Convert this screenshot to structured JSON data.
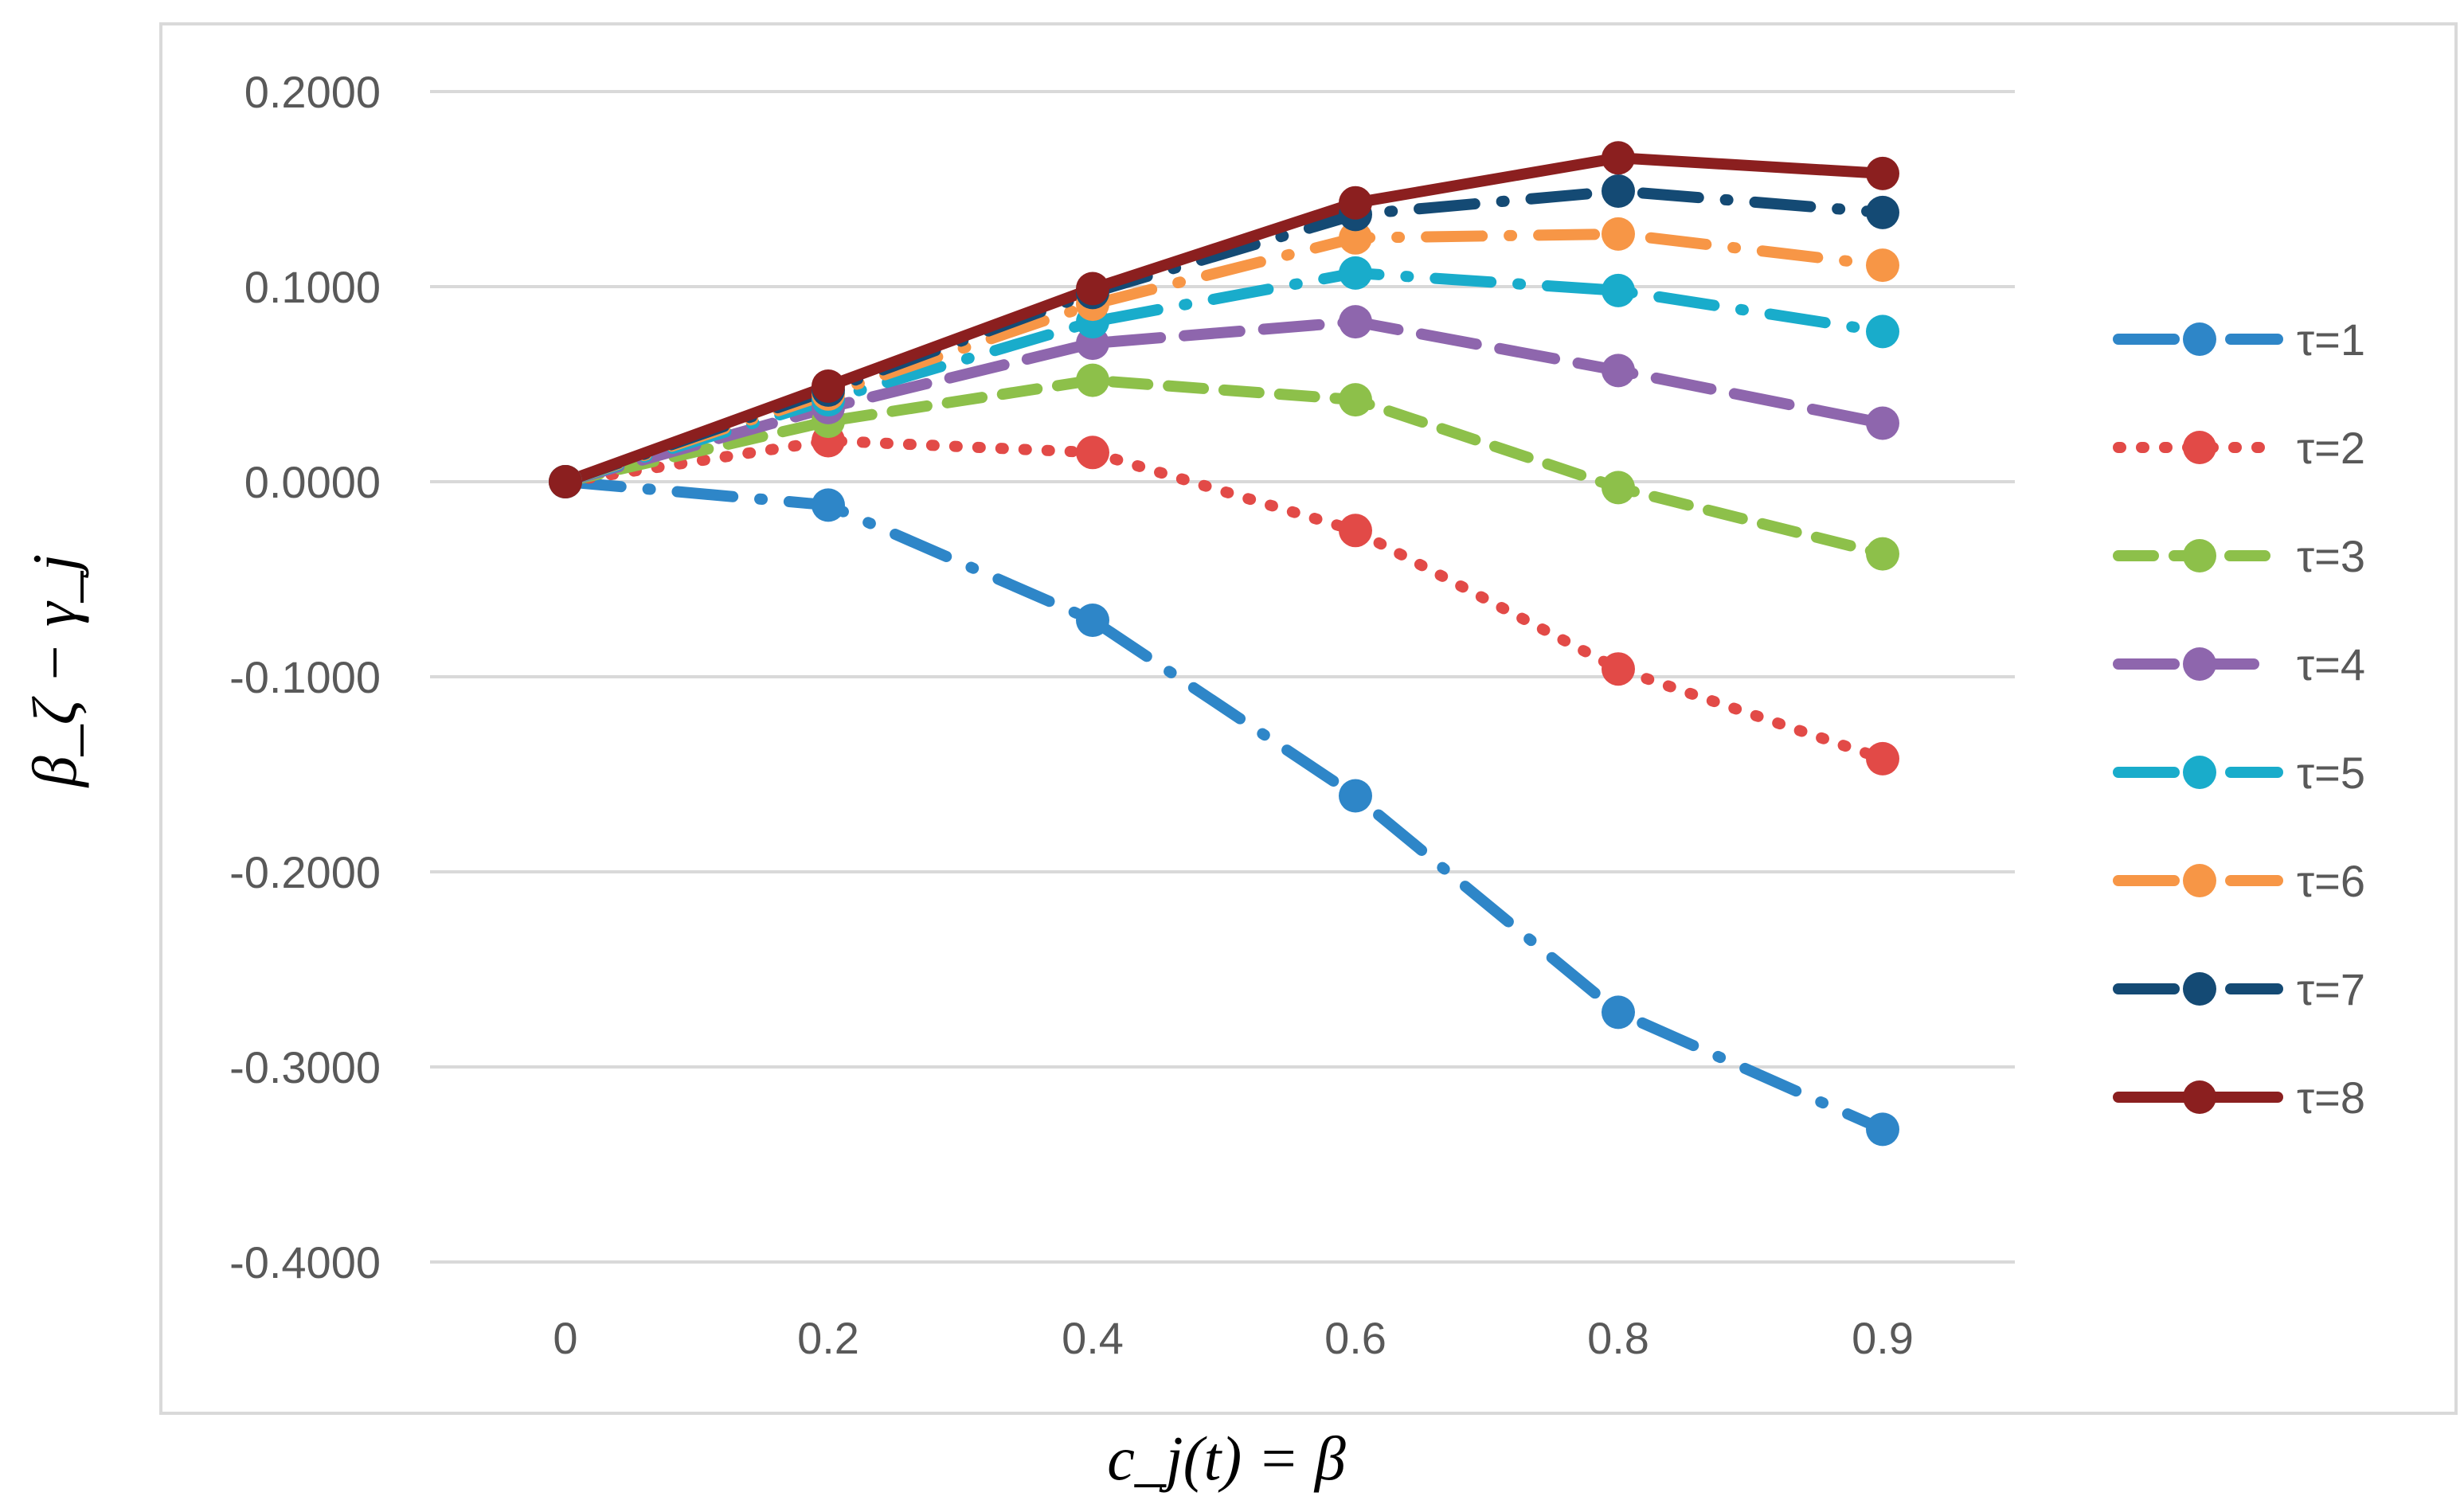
{
  "chart_data": {
    "type": "line",
    "title": "",
    "xlabel": "c_j(t) = β",
    "ylabel": "β_ζ − γ_j",
    "categories": [
      "0",
      "0.2",
      "0.4",
      "0.6",
      "0.8",
      "0.9"
    ],
    "ylim": [
      -0.4,
      0.2
    ],
    "yticks": [
      "0.2000",
      "0.1000",
      "0.0000",
      "-0.1000",
      "-0.2000",
      "-0.3000",
      "-0.4000"
    ],
    "ytick_values": [
      0.2,
      0.1,
      0.0,
      -0.1,
      -0.2,
      -0.3,
      -0.4
    ],
    "grid": true,
    "legend_position": "right",
    "series": [
      {
        "name": "τ=1",
        "color": "#2E86C8",
        "dash": "dashdot",
        "values": [
          0.0,
          -0.012,
          -0.071,
          -0.161,
          -0.272,
          -0.332
        ]
      },
      {
        "name": "τ=2",
        "color": "#E24A47",
        "dash": "dot",
        "values": [
          0.0,
          0.021,
          0.015,
          -0.025,
          -0.096,
          -0.142
        ]
      },
      {
        "name": "τ=3",
        "color": "#8DC04A",
        "dash": "dash",
        "values": [
          0.0,
          0.031,
          0.052,
          0.042,
          -0.003,
          -0.037
        ]
      },
      {
        "name": "τ=4",
        "color": "#8E66AD",
        "dash": "longdash",
        "values": [
          0.0,
          0.038,
          0.071,
          0.082,
          0.057,
          0.03
        ]
      },
      {
        "name": "τ=5",
        "color": "#19ACCB",
        "dash": "dashdot",
        "values": [
          0.0,
          0.042,
          0.082,
          0.107,
          0.098,
          0.077
        ]
      },
      {
        "name": "τ=6",
        "color": "#F79646",
        "dash": "dashdot",
        "values": [
          0.0,
          0.045,
          0.091,
          0.125,
          0.127,
          0.111
        ]
      },
      {
        "name": "τ=7",
        "color": "#144A74",
        "dash": "dashdot",
        "values": [
          0.0,
          0.047,
          0.097,
          0.137,
          0.149,
          0.138
        ]
      },
      {
        "name": "τ=8",
        "color": "#8B1F1F",
        "dash": "solid",
        "values": [
          0.0,
          0.049,
          0.099,
          0.143,
          0.166,
          0.158
        ]
      }
    ]
  }
}
